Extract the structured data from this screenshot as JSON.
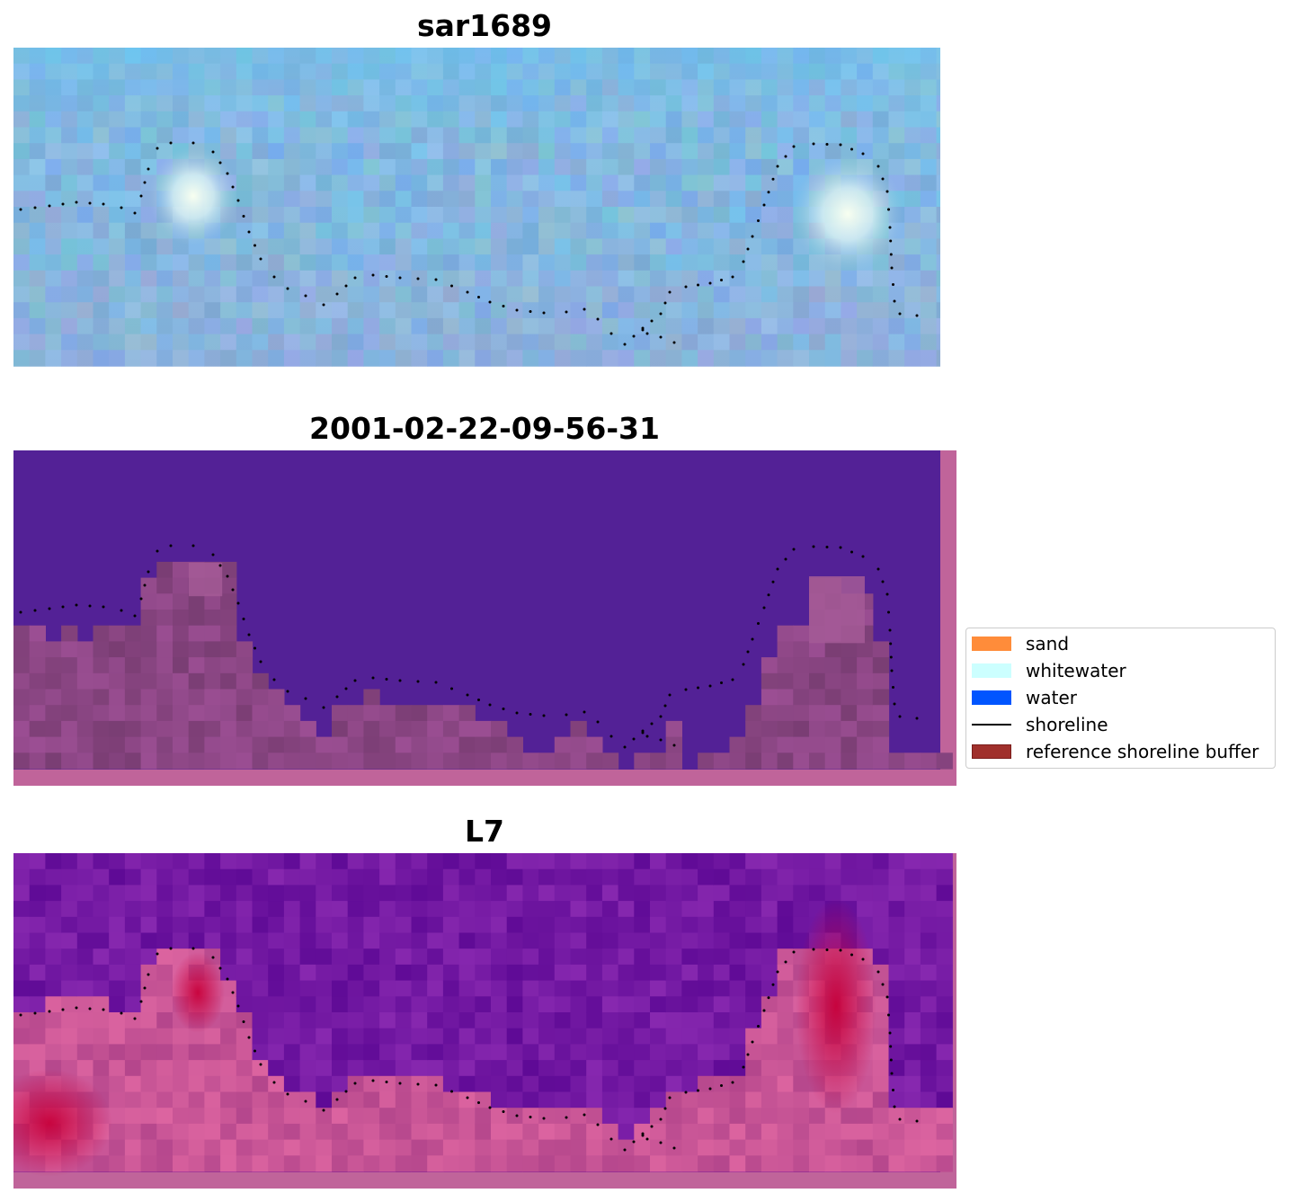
{
  "panels": [
    {
      "title": "sar1689"
    },
    {
      "title": "2001-02-22-09-56-31"
    },
    {
      "title": "L7"
    }
  ],
  "legend": {
    "items": [
      {
        "label": "sand",
        "color": "#ff8c3a",
        "kind": "patch"
      },
      {
        "label": "whitewater",
        "color": "#ccffff",
        "kind": "patch"
      },
      {
        "label": "water",
        "color": "#0055ff",
        "kind": "patch"
      },
      {
        "label": "shoreline",
        "color": "#000000",
        "kind": "line"
      },
      {
        "label": "reference shoreline buffer",
        "color": "#a0302c",
        "kind": "patch"
      }
    ]
  },
  "colors": {
    "classified_water": "#532196",
    "classified_land": "#874580",
    "buffer_frame": "#c0649a",
    "rgb_base": "#7aa8d8",
    "shoreline_dots": "#000000"
  }
}
